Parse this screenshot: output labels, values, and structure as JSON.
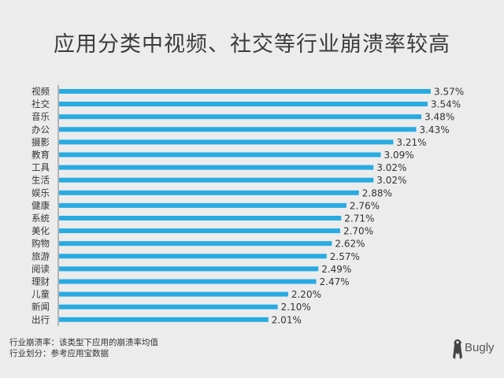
{
  "title": "应用分类中视频、社交等行业崩溃率较高",
  "chart_data": {
    "type": "bar",
    "orientation": "horizontal",
    "categories": [
      "视频",
      "社交",
      "音乐",
      "办公",
      "摄影",
      "教育",
      "工具",
      "生活",
      "娱乐",
      "健康",
      "系统",
      "美化",
      "购物",
      "旅游",
      "阅读",
      "理财",
      "儿童",
      "新闻",
      "出行"
    ],
    "values": [
      3.57,
      3.54,
      3.48,
      3.43,
      3.21,
      3.09,
      3.02,
      3.02,
      2.88,
      2.76,
      2.71,
      2.7,
      2.62,
      2.57,
      2.49,
      2.47,
      2.2,
      2.1,
      2.01
    ],
    "value_labels": [
      "3.57%",
      "3.54%",
      "3.48%",
      "3.43%",
      "3.21%",
      "3.09%",
      "3.02%",
      "3.02%",
      "2.88%",
      "2.76%",
      "2.71%",
      "2.70%",
      "2.62%",
      "2.57%",
      "2.49%",
      "2.47%",
      "2.20%",
      "2.10%",
      "2.01%"
    ],
    "unit": "%",
    "xlim": [
      0,
      3.57
    ],
    "bar_color": "#29abe2",
    "grid": false,
    "legend": "none"
  },
  "footer": {
    "line1": "行业崩溃率：该类型下应用的崩溃率均值",
    "line2": "行业划分：参考应用宝数据"
  },
  "logo": {
    "text": "Bugly",
    "icon": "bugly-bird-icon"
  }
}
